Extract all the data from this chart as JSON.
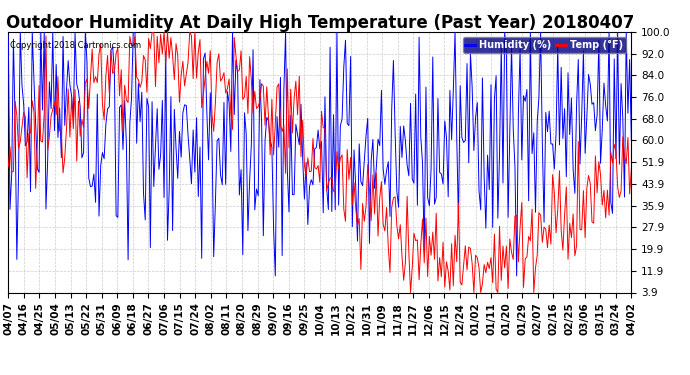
{
  "title": "Outdoor Humidity At Daily High Temperature (Past Year) 20180407",
  "copyright": "Copyright 2018 Cartronics.com",
  "legend_labels": [
    "Humidity (%)",
    "Temp (°F)"
  ],
  "background_color": "#ffffff",
  "grid_color": "#cccccc",
  "yticks": [
    3.9,
    11.9,
    19.9,
    27.9,
    35.9,
    43.9,
    51.9,
    60.0,
    68.0,
    76.0,
    84.0,
    92.0,
    100.0
  ],
  "ylim": [
    3.9,
    100.0
  ],
  "title_fontsize": 12,
  "tick_fontsize": 7.5,
  "xtick_dates": [
    "04/07",
    "04/16",
    "04/25",
    "05/04",
    "05/13",
    "05/22",
    "05/31",
    "06/09",
    "06/18",
    "06/27",
    "07/06",
    "07/15",
    "07/24",
    "08/02",
    "08/11",
    "08/20",
    "08/29",
    "09/07",
    "09/16",
    "09/25",
    "10/04",
    "10/13",
    "10/22",
    "10/31",
    "11/09",
    "11/18",
    "11/27",
    "12/06",
    "12/15",
    "12/24",
    "01/02",
    "01/11",
    "01/20",
    "01/29",
    "02/07",
    "02/16",
    "02/25",
    "03/06",
    "03/15",
    "03/24",
    "04/02"
  ]
}
